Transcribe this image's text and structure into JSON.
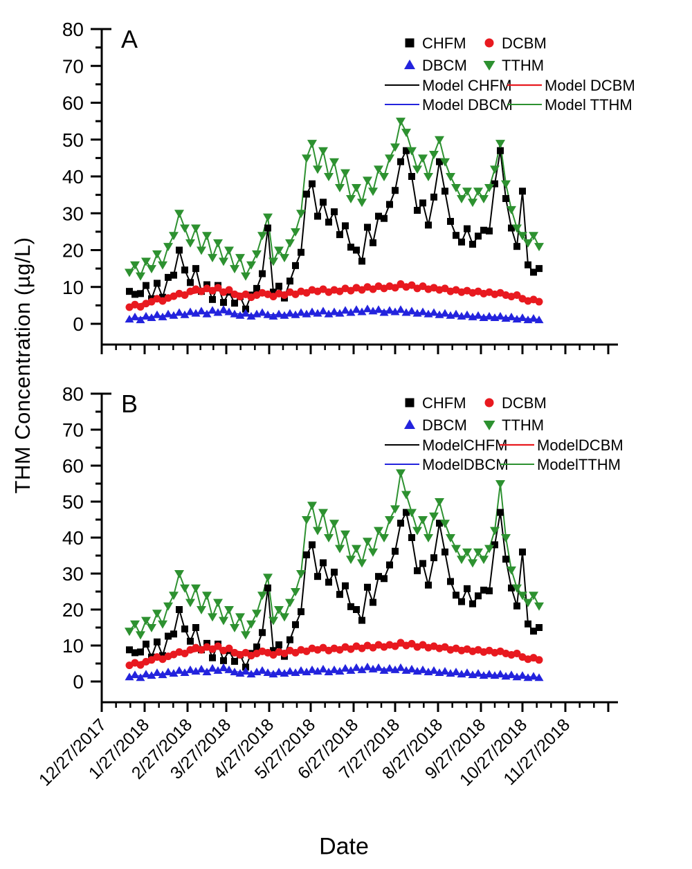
{
  "figure": {
    "y_axis_label": "THM Concentration (µg/L)",
    "x_axis_label": "Date"
  },
  "axes": {
    "y_major_ticks": [
      0,
      10,
      20,
      30,
      40,
      50,
      60,
      70,
      80
    ],
    "y_minor_step": 5,
    "y_range": [
      0,
      80
    ],
    "x_tick_labels": [
      "12/27/2017",
      "1/27/2018",
      "2/27/2018",
      "3/27/2018",
      "4/27/2018",
      "5/27/2018",
      "6/27/2018",
      "7/27/2018",
      "8/27/2018",
      "9/27/2018",
      "10/27/2018",
      "11/27/2018"
    ],
    "x_tick_days": [
      0,
      31,
      62,
      90,
      121,
      151,
      182,
      212,
      243,
      274,
      304,
      335
    ]
  },
  "colors": {
    "CHFM": "#000000",
    "DCBM": "#e8191f",
    "DBCM": "#2323dd",
    "TTHM": "#2d9130"
  },
  "chart_data": [
    {
      "panel": "A",
      "type": "scatter",
      "x_unit": "days since 12/27/2017",
      "x_days": [
        20,
        24,
        28,
        32,
        36,
        40,
        44,
        48,
        52,
        56,
        60,
        64,
        68,
        72,
        76,
        80,
        84,
        88,
        92,
        96,
        100,
        104,
        108,
        112,
        116,
        120,
        124,
        128,
        132,
        136,
        140,
        144,
        148,
        152,
        156,
        160,
        164,
        168,
        172,
        176,
        180,
        184,
        188,
        192,
        196,
        200,
        204,
        208,
        212,
        216,
        220,
        224,
        228,
        232,
        236,
        240,
        244,
        248,
        252,
        256,
        260,
        264,
        268,
        272,
        276,
        280,
        284,
        288,
        292,
        296,
        300,
        304,
        308,
        312,
        316
      ],
      "series": [
        {
          "name": "CHFM",
          "marker": "square",
          "color": "#000000",
          "values": [
            8.8,
            8,
            8.2,
            10.4,
            6.8,
            11,
            7.2,
            12.6,
            13.2,
            20,
            14.6,
            11.2,
            15,
            8.8,
            10.6,
            6.6,
            10.4,
            5.8,
            8.6,
            5.6,
            7.4,
            4,
            7.8,
            9.6,
            13.6,
            26,
            8.6,
            10.2,
            7,
            11.6,
            15.8,
            19.4,
            35.2,
            38,
            29.2,
            33,
            27.6,
            30.4,
            24.2,
            26.6,
            20.8,
            20,
            17,
            26.2,
            22,
            29.2,
            28.6,
            32.4,
            36.2,
            44,
            47,
            40,
            30.8,
            32.8,
            26.8,
            34.4,
            44,
            36,
            27.8,
            24,
            22.2,
            25.8,
            21.6,
            23.8,
            25.4,
            25.2,
            38,
            47,
            34,
            26,
            21,
            36,
            16,
            14,
            15
          ]
        },
        {
          "name": "DCBM",
          "marker": "circle",
          "color": "#e8191f",
          "values": [
            4.5,
            5.2,
            4.6,
            5.5,
            6,
            6.8,
            6.2,
            7,
            7.5,
            8.2,
            7.8,
            8.8,
            9.4,
            8.8,
            9.6,
            9,
            9.8,
            8.6,
            9.2,
            8,
            7.4,
            8,
            7.2,
            7.8,
            8.4,
            8,
            7.4,
            8.2,
            7.8,
            8.6,
            8,
            8.8,
            8.4,
            9.2,
            8.8,
            9.4,
            8.6,
            9.2,
            8.8,
            9.6,
            9,
            9.8,
            9.2,
            10,
            9.4,
            10.2,
            9.6,
            10.2,
            9.8,
            10.8,
            10,
            10.5,
            9.6,
            10.2,
            9.4,
            9.8,
            9.2,
            9.6,
            8.8,
            9.2,
            8.6,
            9,
            8.4,
            8.8,
            8.2,
            8.6,
            8,
            8.4,
            7.8,
            7.4,
            7.8,
            6.8,
            6.2,
            6.6,
            6
          ]
        },
        {
          "name": "DBCM",
          "marker": "triangle-up",
          "color": "#2323dd",
          "values": [
            1.2,
            1.8,
            1,
            2,
            1.6,
            2.4,
            1.8,
            2.6,
            2.2,
            3,
            2.4,
            3.2,
            2.8,
            3.4,
            2.6,
            3.6,
            3,
            3.8,
            3.2,
            2.6,
            2.2,
            2.8,
            2,
            2.6,
            3,
            2.4,
            2,
            2.6,
            2.2,
            2.8,
            2.4,
            3,
            2.6,
            3.2,
            2.8,
            3.4,
            2.6,
            3.2,
            2.8,
            3.6,
            3,
            3.8,
            3.2,
            4,
            3.4,
            3.8,
            3,
            3.6,
            3.2,
            3.8,
            3,
            3.4,
            2.8,
            3.2,
            2.6,
            3,
            2.4,
            2.8,
            2.2,
            2.6,
            2,
            2.4,
            1.8,
            2.2,
            1.6,
            2,
            1.6,
            2,
            1.4,
            1.8,
            1.2,
            1.6,
            1,
            1.4,
            1
          ]
        },
        {
          "name": "TTHM",
          "marker": "triangle-down",
          "color": "#2d9130",
          "values": [
            14,
            16,
            13,
            17,
            15,
            19,
            16,
            21,
            24,
            30,
            26,
            22,
            26,
            20,
            24,
            18,
            22,
            17,
            20,
            15,
            18,
            13,
            16,
            19,
            24,
            29,
            17,
            20,
            18,
            22,
            25,
            30,
            45,
            49,
            42,
            47,
            40,
            44,
            37,
            41,
            34,
            37,
            33,
            39,
            36,
            42,
            40,
            45,
            48,
            55,
            52,
            47,
            42,
            45,
            40,
            46,
            50,
            44,
            40,
            37,
            34,
            36,
            33,
            36,
            34,
            37,
            42,
            49,
            38,
            31,
            26,
            24,
            22,
            24,
            21
          ]
        }
      ],
      "model_lines": [
        {
          "name": "Model CHFM",
          "color": "#000000",
          "width": 2,
          "follows": "CHFM"
        },
        {
          "name": "Model DCBM",
          "color": "#e8191f",
          "width": 2.2,
          "x": [
            20,
            50,
            80,
            110,
            140,
            170,
            200,
            230,
            260,
            290,
            316
          ],
          "values": [
            4.8,
            7.2,
            9.2,
            7.8,
            8.4,
            9,
            9.8,
            10,
            8.8,
            8,
            6.2
          ]
        },
        {
          "name": "Model DBCM",
          "color": "#2323dd",
          "width": 1.6,
          "x": [
            20,
            50,
            80,
            110,
            140,
            170,
            200,
            230,
            260,
            290,
            316
          ],
          "values": [
            1.4,
            2.4,
            3.2,
            2.4,
            2.6,
            3,
            3.6,
            3,
            2.2,
            1.8,
            1.2
          ]
        },
        {
          "name": "Model TTHM",
          "color": "#2d9130",
          "width": 2,
          "follows": "TTHM"
        }
      ],
      "legend": {
        "markers": [
          "CHFM",
          "DCBM",
          "DBCM",
          "TTHM"
        ],
        "lines": [
          "Model CHFM",
          "Model DCBM",
          "Model DBCM",
          "Model TTHM"
        ]
      }
    },
    {
      "panel": "B",
      "type": "scatter",
      "x_unit": "days since 12/27/2017",
      "x_days": [
        20,
        24,
        28,
        32,
        36,
        40,
        44,
        48,
        52,
        56,
        60,
        64,
        68,
        72,
        76,
        80,
        84,
        88,
        92,
        96,
        100,
        104,
        108,
        112,
        116,
        120,
        124,
        128,
        132,
        136,
        140,
        144,
        148,
        152,
        156,
        160,
        164,
        168,
        172,
        176,
        180,
        184,
        188,
        192,
        196,
        200,
        204,
        208,
        212,
        216,
        220,
        224,
        228,
        232,
        236,
        240,
        244,
        248,
        252,
        256,
        260,
        264,
        268,
        272,
        276,
        280,
        284,
        288,
        292,
        296,
        300,
        304,
        308,
        312,
        316
      ],
      "series": [
        {
          "name": "CHFM",
          "marker": "square",
          "color": "#000000",
          "values": [
            8.8,
            8,
            8.2,
            10.4,
            6.8,
            11,
            7.2,
            12.6,
            13.2,
            20,
            14.6,
            11.2,
            15,
            8.8,
            10.6,
            6.6,
            10.4,
            5.8,
            8.6,
            5.6,
            7.4,
            4,
            7.8,
            9.6,
            13.6,
            26,
            8.6,
            10.2,
            7,
            11.6,
            15.8,
            19.4,
            35.2,
            38,
            29.2,
            33,
            27.6,
            30.4,
            24.2,
            26.6,
            20.8,
            20,
            17,
            26.2,
            22,
            29.2,
            28.6,
            32.4,
            36.2,
            44,
            47,
            40,
            30.8,
            32.8,
            26.8,
            34.4,
            44,
            36,
            27.8,
            24,
            22.2,
            25.8,
            21.6,
            23.8,
            25.4,
            25.2,
            38,
            47,
            34,
            26,
            21,
            36,
            16,
            14,
            15
          ]
        },
        {
          "name": "DCBM",
          "marker": "circle",
          "color": "#e8191f",
          "values": [
            4.5,
            5.2,
            4.6,
            5.5,
            6,
            6.8,
            6.2,
            7,
            7.5,
            8.2,
            7.8,
            8.8,
            9.4,
            8.8,
            9.6,
            9,
            9.8,
            8.6,
            9.2,
            8,
            7.4,
            8,
            7.2,
            7.8,
            8.4,
            8,
            7.4,
            8.2,
            7.8,
            8.6,
            8,
            8.8,
            8.4,
            9.2,
            8.8,
            9.4,
            8.6,
            9.2,
            8.8,
            9.6,
            9,
            9.8,
            9.2,
            10,
            9.4,
            10.2,
            9.6,
            10.2,
            9.8,
            10.8,
            10,
            10.5,
            9.6,
            10.2,
            9.4,
            9.8,
            9.2,
            9.6,
            8.8,
            9.2,
            8.6,
            9,
            8.4,
            8.8,
            8.2,
            8.6,
            8,
            8.4,
            7.8,
            7.4,
            7.8,
            6.8,
            6.2,
            6.6,
            6
          ]
        },
        {
          "name": "DBCM",
          "marker": "triangle-up",
          "color": "#2323dd",
          "values": [
            1.2,
            1.8,
            1,
            2,
            1.6,
            2.4,
            1.8,
            2.6,
            2.2,
            3,
            2.4,
            3.2,
            2.8,
            3.4,
            2.6,
            3.6,
            3,
            3.8,
            3.2,
            2.6,
            2.2,
            2.8,
            2,
            2.6,
            3,
            2.4,
            2,
            2.6,
            2.2,
            2.8,
            2.4,
            3,
            2.6,
            3.2,
            2.8,
            3.4,
            2.6,
            3.2,
            2.8,
            3.6,
            3,
            3.8,
            3.2,
            4,
            3.4,
            3.8,
            3,
            3.6,
            3.2,
            3.8,
            3,
            3.4,
            2.8,
            3.2,
            2.6,
            3,
            2.4,
            2.8,
            2.2,
            2.6,
            2,
            2.4,
            1.8,
            2.2,
            1.6,
            2,
            1.6,
            2,
            1.4,
            1.8,
            1.2,
            1.6,
            1,
            1.4,
            1
          ]
        },
        {
          "name": "TTHM",
          "marker": "triangle-down",
          "color": "#2d9130",
          "values": [
            14,
            16,
            13,
            17,
            15,
            19,
            16,
            21,
            24,
            30,
            26,
            22,
            26,
            20,
            24,
            18,
            22,
            17,
            20,
            15,
            18,
            13,
            16,
            19,
            24,
            29,
            17,
            20,
            18,
            22,
            25,
            30,
            45,
            49,
            42,
            47,
            40,
            44,
            37,
            41,
            34,
            37,
            33,
            39,
            36,
            42,
            40,
            45,
            48,
            58,
            52,
            47,
            42,
            45,
            40,
            46,
            50,
            44,
            40,
            37,
            34,
            36,
            33,
            36,
            34,
            37,
            42,
            55,
            40,
            31,
            26,
            24,
            22,
            24,
            21
          ]
        }
      ],
      "model_lines": [
        {
          "name": "ModelCHFM",
          "color": "#000000",
          "width": 2,
          "follows": "CHFM"
        },
        {
          "name": "ModelDCBM",
          "color": "#e8191f",
          "width": 2.2,
          "x": [
            20,
            50,
            80,
            110,
            140,
            170,
            200,
            230,
            260,
            290,
            316
          ],
          "values": [
            4.8,
            7.2,
            9.2,
            7.8,
            8.4,
            9,
            9.8,
            10,
            8.8,
            8,
            6.2
          ]
        },
        {
          "name": "ModelDBCM",
          "color": "#2323dd",
          "width": 1.3,
          "x": [
            20,
            50,
            80,
            110,
            140,
            170,
            200,
            230,
            260,
            290,
            316
          ],
          "values": [
            1.4,
            2.4,
            3.2,
            2.4,
            2.6,
            3,
            3.6,
            3,
            2.2,
            1.8,
            1.2
          ]
        },
        {
          "name": "ModelTTHM",
          "color": "#2d9130",
          "width": 2,
          "follows": "TTHM"
        }
      ],
      "legend": {
        "markers": [
          "CHFM",
          "DCBM",
          "DBCM",
          "TTHM"
        ],
        "lines": [
          "ModelCHFM",
          "ModelDCBM",
          "ModelDBCM",
          "ModelTTHM"
        ]
      }
    }
  ]
}
